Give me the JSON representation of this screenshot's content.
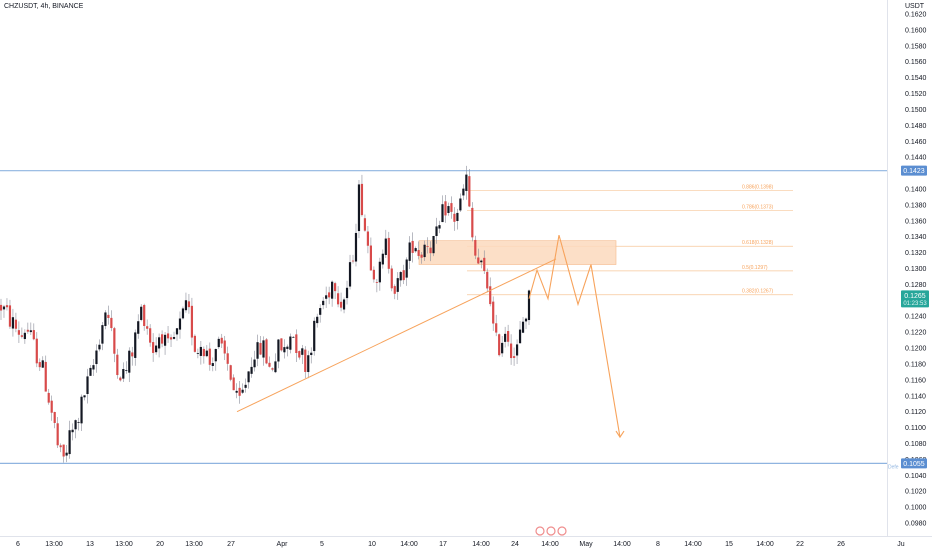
{
  "header": {
    "symbol_line": "CHZUSDT, 4h, BINANCE"
  },
  "colors": {
    "up": "#131722",
    "down": "#d84a4a",
    "level_line": "#8fb4e0",
    "level_badge": "#5b8ed1",
    "price_badge": "#26a69a",
    "drawing": "#f7a35c",
    "fib_line": "#f7c79a",
    "zone_fill": "#fbd9bd"
  },
  "chart_data": {
    "type": "candlestick",
    "pair": "CHZUSDT",
    "timeframe": "4h",
    "exchange": "BINANCE",
    "y_axis_title": "USDT",
    "ylim": [
      0.097,
      0.1625
    ],
    "y_ticks": [
      "0.1620",
      "0.1600",
      "0.1580",
      "0.1560",
      "0.1540",
      "0.1520",
      "0.1500",
      "0.1480",
      "0.1460",
      "0.1440",
      "0.1420",
      "0.1400",
      "0.1380",
      "0.1360",
      "0.1340",
      "0.1320",
      "0.1300",
      "0.1280",
      "0.1260",
      "0.1240",
      "0.1220",
      "0.1200",
      "0.1180",
      "0.1160",
      "0.1140",
      "0.1120",
      "0.1100",
      "0.1080",
      "0.1060",
      "0.1040",
      "0.1020",
      "0.1000",
      "0.0980"
    ],
    "x_ticks": [
      "6",
      "13:00",
      "13",
      "13:00",
      "20",
      "13:00",
      "27",
      "Apr",
      "5",
      "10",
      "14:00",
      "17",
      "14:00",
      "24",
      "14:00",
      "May",
      "14:00",
      "8",
      "14:00",
      "15",
      "14:00",
      "22",
      "26",
      "Ju"
    ],
    "bar_count": 178,
    "price_path": [
      [
        0,
        0.1255
      ],
      [
        5,
        0.1245
      ],
      [
        10,
        0.1236
      ],
      [
        14,
        0.1228
      ],
      [
        18,
        0.1222
      ],
      [
        22,
        0.1216
      ],
      [
        26,
        0.1228
      ],
      [
        30,
        0.1214
      ],
      [
        34,
        0.12
      ],
      [
        38,
        0.119
      ],
      [
        42,
        0.1175
      ],
      [
        46,
        0.1155
      ],
      [
        50,
        0.113
      ],
      [
        54,
        0.1105
      ],
      [
        58,
        0.1075
      ],
      [
        62,
        0.1055
      ],
      [
        66,
        0.1068
      ],
      [
        70,
        0.109
      ],
      [
        74,
        0.1098
      ],
      [
        78,
        0.1112
      ],
      [
        82,
        0.113
      ],
      [
        86,
        0.115
      ],
      [
        90,
        0.1162
      ],
      [
        94,
        0.118
      ],
      [
        98,
        0.1208
      ],
      [
        102,
        0.1228
      ],
      [
        106,
        0.1252
      ],
      [
        110,
        0.1226
      ],
      [
        114,
        0.1195
      ],
      [
        118,
        0.1178
      ],
      [
        122,
        0.1165
      ],
      [
        126,
        0.1172
      ],
      [
        130,
        0.1188
      ],
      [
        134,
        0.1204
      ],
      [
        138,
        0.1232
      ],
      [
        142,
        0.125
      ],
      [
        146,
        0.1235
      ],
      [
        150,
        0.1212
      ],
      [
        154,
        0.1196
      ],
      [
        158,
        0.1215
      ],
      [
        162,
        0.122
      ],
      [
        166,
        0.12
      ],
      [
        170,
        0.1195
      ],
      [
        174,
        0.121
      ],
      [
        178,
        0.122
      ],
      [
        182,
        0.1235
      ],
      [
        186,
        0.1248
      ],
      [
        190,
        0.1238
      ],
      [
        194,
        0.1205
      ],
      [
        198,
        0.1198
      ],
      [
        202,
        0.121
      ],
      [
        206,
        0.1196
      ],
      [
        210,
        0.118
      ],
      [
        214,
        0.1198
      ],
      [
        218,
        0.1205
      ],
      [
        222,
        0.1192
      ],
      [
        226,
        0.1186
      ],
      [
        230,
        0.1172
      ],
      [
        234,
        0.1145
      ],
      [
        238,
        0.1125
      ],
      [
        242,
        0.114
      ],
      [
        246,
        0.116
      ],
      [
        250,
        0.1178
      ],
      [
        254,
        0.12
      ],
      [
        258,
        0.1192
      ],
      [
        262,
        0.1205
      ],
      [
        266,
        0.119
      ],
      [
        270,
        0.1172
      ],
      [
        274,
        0.1185
      ],
      [
        278,
        0.1198
      ],
      [
        282,
        0.12
      ],
      [
        286,
        0.1192
      ],
      [
        290,
        0.1222
      ],
      [
        294,
        0.1215
      ],
      [
        298,
        0.12
      ],
      [
        302,
        0.1192
      ],
      [
        306,
        0.118
      ],
      [
        310,
        0.1202
      ],
      [
        314,
        0.1222
      ],
      [
        318,
        0.1242
      ],
      [
        322,
        0.1258
      ],
      [
        326,
        0.1264
      ],
      [
        330,
        0.1278
      ],
      [
        334,
        0.129
      ],
      [
        338,
        0.127
      ],
      [
        342,
        0.1256
      ],
      [
        346,
        0.127
      ],
      [
        350,
        0.1295
      ],
      [
        354,
        0.133
      ],
      [
        358,
        0.1388
      ],
      [
        360,
        0.1405
      ],
      [
        363,
        0.1368
      ],
      [
        366,
        0.1342
      ],
      [
        370,
        0.1316
      ],
      [
        374,
        0.13
      ],
      [
        378,
        0.129
      ],
      [
        382,
        0.1305
      ],
      [
        386,
        0.133
      ],
      [
        390,
        0.13
      ],
      [
        394,
        0.1276
      ],
      [
        398,
        0.1278
      ],
      [
        402,
        0.129
      ],
      [
        406,
        0.1305
      ],
      [
        410,
        0.1322
      ],
      [
        414,
        0.134
      ],
      [
        418,
        0.132
      ],
      [
        422,
        0.1322
      ],
      [
        426,
        0.1338
      ],
      [
        430,
        0.133
      ],
      [
        434,
        0.1335
      ],
      [
        438,
        0.134
      ],
      [
        442,
        0.1365
      ],
      [
        446,
        0.138
      ],
      [
        450,
        0.137
      ],
      [
        454,
        0.1362
      ],
      [
        458,
        0.1375
      ],
      [
        462,
        0.1385
      ],
      [
        466,
        0.1418
      ],
      [
        470,
        0.136
      ],
      [
        474,
        0.132
      ],
      [
        478,
        0.1306
      ],
      [
        482,
        0.1298
      ],
      [
        486,
        0.1282
      ],
      [
        490,
        0.127
      ],
      [
        494,
        0.1212
      ],
      [
        498,
        0.12
      ],
      [
        502,
        0.1212
      ],
      [
        506,
        0.1228
      ],
      [
        510,
        0.1206
      ],
      [
        514,
        0.119
      ],
      [
        518,
        0.12
      ],
      [
        522,
        0.123
      ],
      [
        526,
        0.1245
      ],
      [
        529,
        0.1262
      ]
    ],
    "levels": [
      {
        "price": 0.1423,
        "label": "0.1423"
      },
      {
        "price": 0.1055,
        "label": "0.1055"
      }
    ],
    "level_side_label": "Defe",
    "last_price": {
      "price": 0.1265,
      "label": "0.1265",
      "countdown": "01:23:53"
    },
    "fib_levels": [
      {
        "label": "0.886(0.1398)",
        "price": 0.1398
      },
      {
        "label": "0.786(0.1373)",
        "price": 0.1373
      },
      {
        "label": "0.618(0.1328)",
        "price": 0.1328
      },
      {
        "label": "0.5(0.1297)",
        "price": 0.1297
      },
      {
        "label": "0.382(0.1267)",
        "price": 0.1267
      }
    ],
    "zone": {
      "from_price": 0.1335,
      "to_price": 0.1305
    },
    "trendline": [
      [
        237,
        0.112
      ],
      [
        556,
        0.1312
      ]
    ],
    "projection": [
      [
        529,
        0.1262
      ],
      [
        537,
        0.1298
      ],
      [
        548,
        0.1262
      ],
      [
        559,
        0.1342
      ],
      [
        578,
        0.1255
      ],
      [
        591,
        0.1305
      ],
      [
        620,
        0.1088
      ]
    ]
  }
}
